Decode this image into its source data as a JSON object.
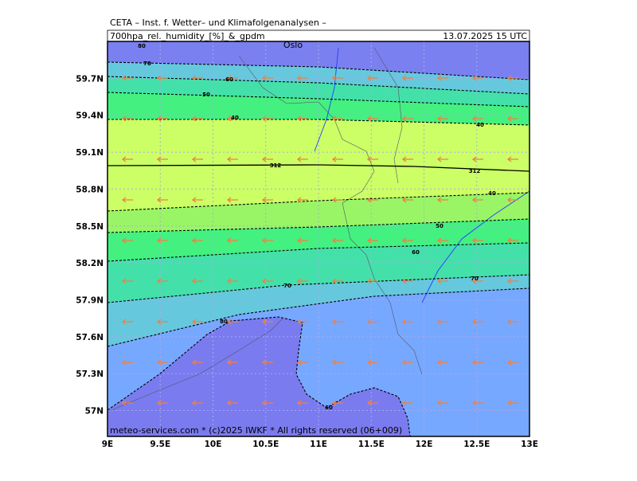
{
  "header": {
    "institute": "CETA – Inst. f. Wetter– und Klimafolgenanalysen –",
    "product": "700hpa_rel._humidity_[%]_&_gpdm",
    "valid": "13.07.2025 15 UTC"
  },
  "footer": "meteo-services.com * (c)2025 IWKF * All rights reserved (06+009)",
  "place": "Oslo",
  "map": {
    "xlim": [
      9,
      13
    ],
    "ylim": [
      56.79,
      60.0
    ],
    "grid": true,
    "xticks": [
      {
        "value": 9,
        "label": "9E"
      },
      {
        "value": 9.5,
        "label": "9.5E"
      },
      {
        "value": 10,
        "label": "10E"
      },
      {
        "value": 10.5,
        "label": "10.5E"
      },
      {
        "value": 11,
        "label": "11E"
      },
      {
        "value": 11.5,
        "label": "11.5E"
      },
      {
        "value": 12,
        "label": "12E"
      },
      {
        "value": 12.5,
        "label": "12.5E"
      },
      {
        "value": 13,
        "label": "13E"
      }
    ],
    "yticks": [
      {
        "value": 57,
        "label": "57N"
      },
      {
        "value": 57.3,
        "label": "57.3N"
      },
      {
        "value": 57.6,
        "label": "57.6N"
      },
      {
        "value": 57.9,
        "label": "57.9N"
      },
      {
        "value": 58.2,
        "label": "58.2N"
      },
      {
        "value": 58.5,
        "label": "58.5N"
      },
      {
        "value": 58.8,
        "label": "58.8N"
      },
      {
        "value": 59.1,
        "label": "59.1N"
      },
      {
        "value": 59.4,
        "label": "59.4N"
      },
      {
        "value": 59.7,
        "label": "59.7N"
      }
    ]
  },
  "contour_labels": [
    "80",
    "70",
    "60",
    "50",
    "40",
    "40",
    "312",
    "312",
    "40",
    "50",
    "60",
    "70",
    "70",
    "80",
    "60"
  ]
}
